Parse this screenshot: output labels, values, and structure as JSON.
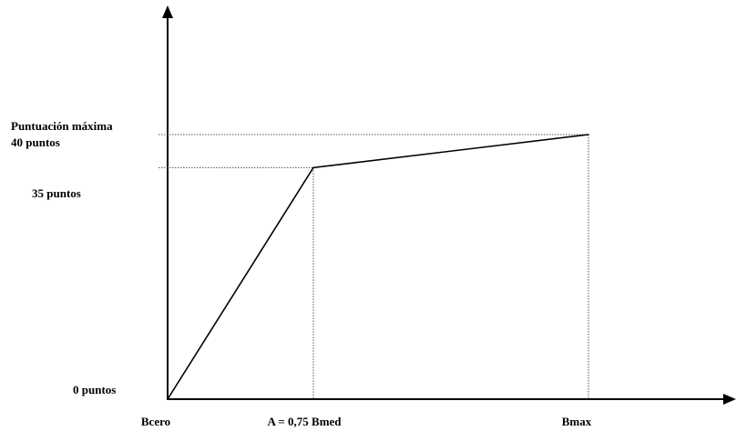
{
  "chart_data": {
    "type": "line",
    "title": "",
    "xlabel": "",
    "ylabel": "",
    "x_tick_labels": [
      "Bcero",
      "A = 0,75 Bmed",
      "Bmax"
    ],
    "y_tick_labels": [
      "0 puntos",
      "35 puntos",
      "Puntuación máxima",
      "40 puntos"
    ],
    "series": [
      {
        "points": [
          {
            "x": "Bcero",
            "y": 0
          },
          {
            "x": "A = 0,75 Bmed",
            "y": 35
          },
          {
            "x": "Bmax",
            "y": 40
          }
        ]
      }
    ],
    "reference_lines": "dotted guides from each labelled point to both axes",
    "grid": false,
    "legend": "none",
    "colors": {
      "axis": "#000000",
      "line": "#000000",
      "guide": "#555555"
    }
  }
}
